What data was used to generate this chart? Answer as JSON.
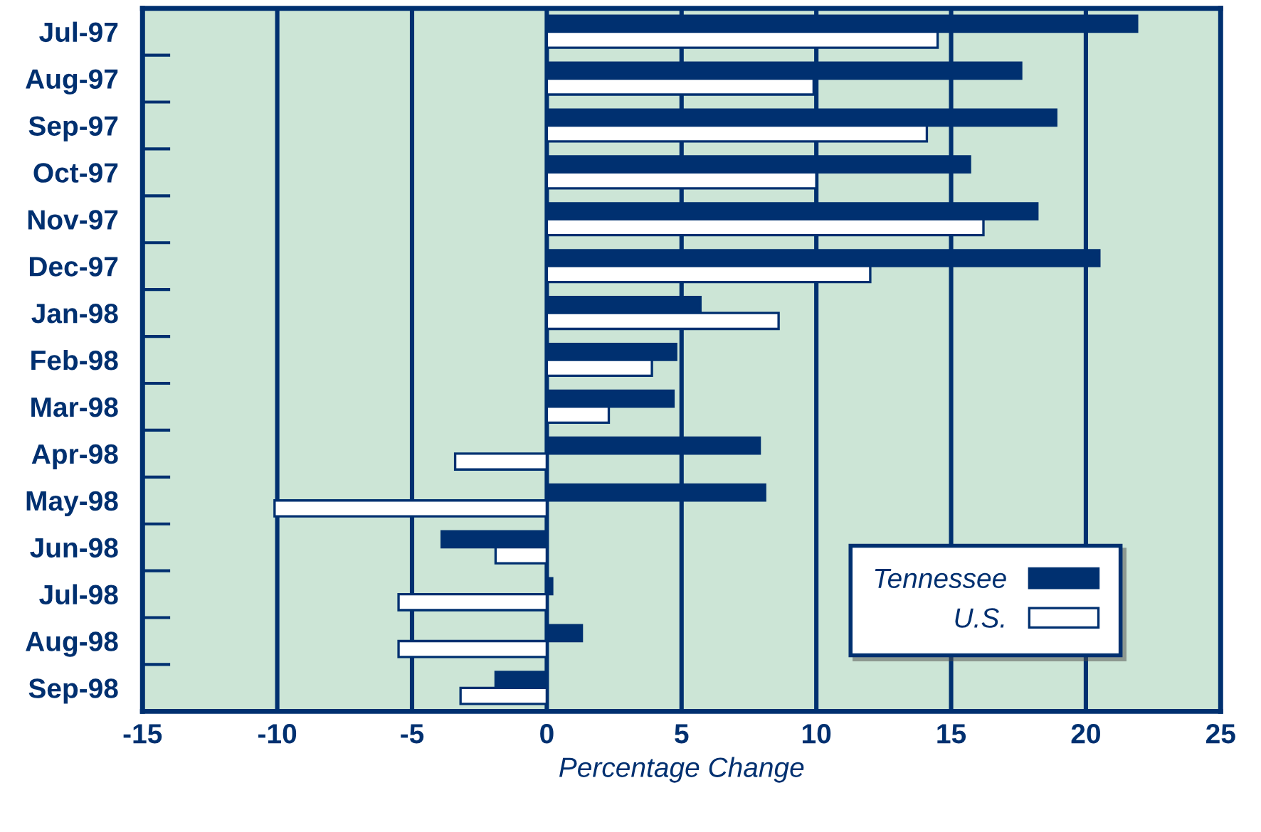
{
  "chart_data": {
    "type": "bar",
    "orientation": "horizontal",
    "xlabel": "Percentage Change",
    "categories": [
      "Jul-97",
      "Aug-97",
      "Sep-97",
      "Oct-97",
      "Nov-97",
      "Dec-97",
      "Jan-98",
      "Feb-98",
      "Mar-98",
      "Apr-98",
      "May-98",
      "Jun-98",
      "Jul-98",
      "Aug-98",
      "Sep-98"
    ],
    "series": [
      {
        "name": "Tennessee",
        "color": "#003070",
        "values": [
          21.9,
          17.6,
          18.9,
          15.7,
          18.2,
          20.5,
          5.7,
          4.8,
          4.7,
          7.9,
          8.1,
          -3.9,
          0.2,
          1.3,
          -1.9
        ]
      },
      {
        "name": "U.S.",
        "color": "#ffffff",
        "values": [
          14.5,
          9.9,
          14.1,
          10.0,
          16.2,
          12.0,
          8.6,
          3.9,
          2.3,
          -3.4,
          -10.1,
          -1.9,
          -5.5,
          -5.5,
          -3.2
        ]
      }
    ],
    "xlim": [
      -15,
      25
    ],
    "xticks": [
      -15,
      -10,
      -5,
      0,
      5,
      10,
      15,
      20,
      25
    ],
    "grid": "x",
    "legend": "bottom right"
  }
}
